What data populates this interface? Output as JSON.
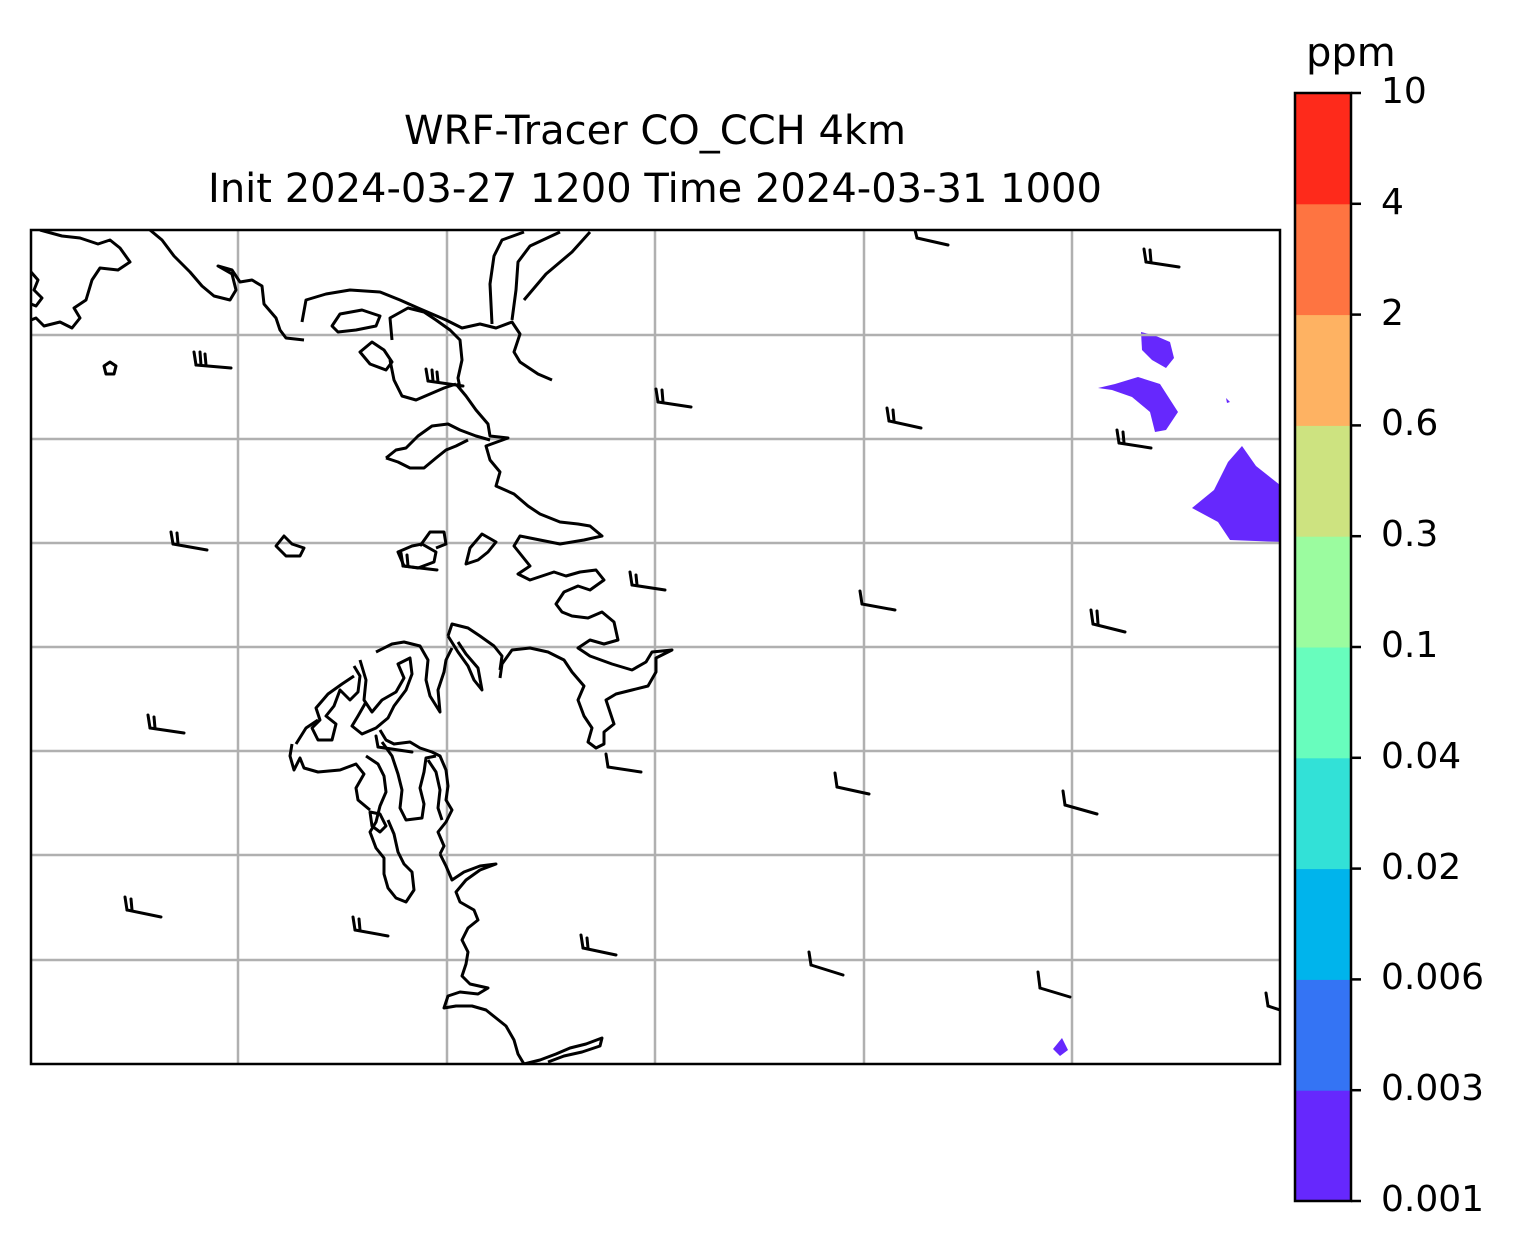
{
  "title": {
    "line1": "WRF-Tracer CO_CCH 4km",
    "line2": "Init 2024-03-27 1200 Time 2024-03-31 1000"
  },
  "colorbar": {
    "unit": "ppm",
    "levels": [
      "0.001",
      "0.003",
      "0.006",
      "0.02",
      "0.04",
      "0.1",
      "0.3",
      "0.6",
      "2",
      "4",
      "10"
    ],
    "colors": [
      "#6628fd",
      "#3474f4",
      "#00b4ec",
      "#32e1d7",
      "#68fdbd",
      "#9bfc9f",
      "#cde380",
      "#feb262",
      "#fe7441",
      "#fe2a1b"
    ]
  },
  "map": {
    "gridlines": true,
    "coastline_color": "#000000",
    "gridline_color": "#b0b0b0",
    "wind_barbs": true
  }
}
